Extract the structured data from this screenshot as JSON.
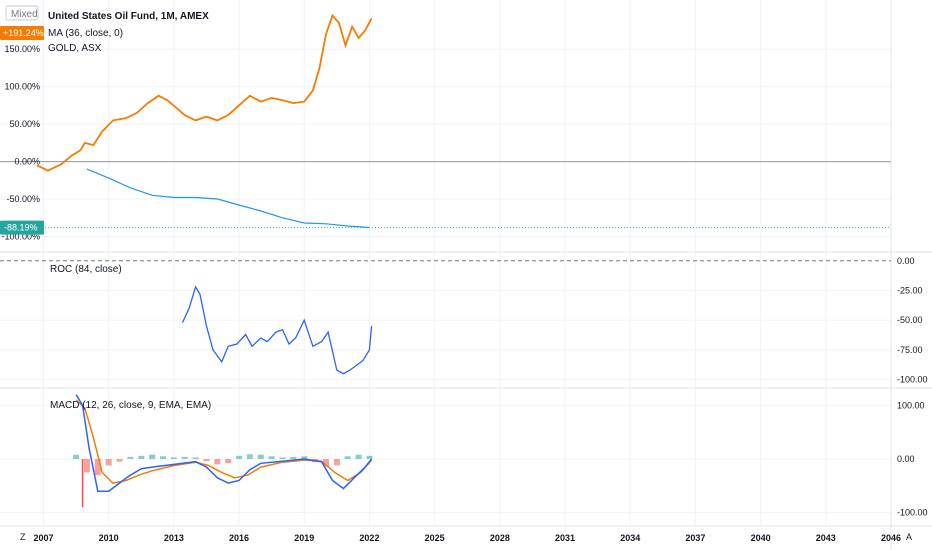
{
  "chart_data": [
    {
      "type": "line",
      "pane": "main",
      "title": "United States Oil Fund, 1M, AMEX",
      "scale_mode": "Mixed",
      "lines": [
        "MA (36, close, 0)",
        "GOLD, ASX"
      ],
      "y_tick_labels": [
        "150.00%",
        "100.00%",
        "50.00%",
        "0.00%",
        "-50.00%",
        "-100.00%"
      ],
      "y_ticks": [
        150,
        100,
        50,
        0,
        -50,
        -100
      ],
      "ylim": [
        -110,
        205
      ],
      "xlim": [
        2005.0,
        2046.0
      ],
      "badges": [
        {
          "text": "+191.24%",
          "value": 191.24,
          "color": "#f57c00"
        },
        {
          "text": "-88.19%",
          "value": -88.19,
          "color": "#26a69a"
        }
      ],
      "gold_line": {
        "color": "#f57c00",
        "x": [
          2006.7,
          2007.2,
          2007.8,
          2008.3,
          2008.7,
          2008.9,
          2009.3,
          2009.7,
          2010.2,
          2010.8,
          2011.3,
          2011.8,
          2012.3,
          2012.7,
          2013.1,
          2013.5,
          2014.0,
          2014.5,
          2015.0,
          2015.5,
          2016.0,
          2016.5,
          2017.0,
          2017.5,
          2018.0,
          2018.5,
          2019.0,
          2019.4,
          2019.7,
          2020.0,
          2020.3,
          2020.6,
          2020.9,
          2021.2,
          2021.5,
          2021.8,
          2022.1
        ],
        "y": [
          -5,
          -12,
          -4,
          8,
          15,
          25,
          22,
          40,
          55,
          58,
          65,
          78,
          88,
          82,
          72,
          62,
          55,
          60,
          55,
          62,
          75,
          88,
          80,
          85,
          82,
          78,
          80,
          95,
          125,
          170,
          195,
          185,
          155,
          180,
          165,
          175,
          191.24
        ]
      },
      "ma_line": {
        "color": "#2196f3",
        "x": [
          2009.0,
          2010.0,
          2011.0,
          2012.0,
          2013.0,
          2014.0,
          2015.0,
          2016.0,
          2017.0,
          2018.0,
          2019.0,
          2020.0,
          2021.0,
          2022.0
        ],
        "y": [
          -10,
          -22,
          -35,
          -45,
          -48,
          -48,
          -50,
          -58,
          -66,
          -75,
          -82,
          -83,
          -86,
          -88
        ]
      },
      "baseline": 0
    },
    {
      "type": "line",
      "pane": "roc",
      "title": "ROC (84, close)",
      "color": "#2962ff",
      "y_tick_labels": [
        "0.00",
        "-25.00",
        "-50.00",
        "-75.00",
        "-100.00"
      ],
      "y_ticks": [
        0,
        -25,
        -50,
        -75,
        -100
      ],
      "ylim": [
        -102,
        4
      ],
      "x": [
        2013.4,
        2013.7,
        2014.0,
        2014.2,
        2014.5,
        2014.8,
        2015.2,
        2015.5,
        2015.9,
        2016.3,
        2016.6,
        2017.0,
        2017.3,
        2017.7,
        2018.0,
        2018.3,
        2018.6,
        2019.0,
        2019.4,
        2019.8,
        2020.1,
        2020.5,
        2020.8,
        2021.1,
        2021.4,
        2021.7,
        2022.0,
        2022.1
      ],
      "y": [
        -52,
        -40,
        -22,
        -28,
        -55,
        -75,
        -85,
        -72,
        -70,
        -62,
        -72,
        -65,
        -68,
        -60,
        -58,
        -70,
        -65,
        -50,
        -72,
        -68,
        -60,
        -92,
        -95,
        -92,
        -88,
        -84,
        -75,
        -55
      ]
    },
    {
      "type": "line",
      "pane": "macd",
      "title": "MACD (12, 26, close, 9, EMA, EMA)",
      "y_tick_labels": [
        "100.00",
        "0.00",
        "-100.00"
      ],
      "y_ticks": [
        100,
        0,
        -100
      ],
      "ylim": [
        -110,
        125
      ],
      "macd": {
        "color": "#2962ff",
        "x": [
          2008.5,
          2008.8,
          2009.1,
          2009.5,
          2010.0,
          2010.5,
          2011.0,
          2011.5,
          2012.0,
          2013.0,
          2014.0,
          2014.5,
          2015.0,
          2015.5,
          2016.0,
          2016.5,
          2017.0,
          2018.0,
          2019.0,
          2019.8,
          2020.3,
          2020.8,
          2021.3,
          2021.8,
          2022.1
        ],
        "y": [
          120,
          100,
          20,
          -60,
          -60,
          -45,
          -30,
          -18,
          -15,
          -10,
          -5,
          -15,
          -35,
          -45,
          -40,
          -20,
          -8,
          -4,
          0,
          -5,
          -40,
          -55,
          -35,
          -15,
          0
        ]
      },
      "signal": {
        "color": "#f57c00",
        "x": [
          2008.5,
          2008.9,
          2009.3,
          2009.7,
          2010.2,
          2010.8,
          2011.4,
          2012.0,
          2013.0,
          2014.0,
          2014.6,
          2015.2,
          2015.8,
          2016.4,
          2017.0,
          2018.0,
          2019.0,
          2019.8,
          2020.4,
          2021.0,
          2021.6,
          2022.1
        ],
        "y": [
          110,
          95,
          40,
          -25,
          -45,
          -40,
          -30,
          -22,
          -12,
          -6,
          -12,
          -25,
          -35,
          -30,
          -15,
          -6,
          -2,
          -4,
          -25,
          -40,
          -25,
          -2
        ]
      },
      "histogram": {
        "x": [
          2008.5,
          2009.0,
          2009.5,
          2010.0,
          2010.5,
          2011.0,
          2011.5,
          2012.0,
          2012.5,
          2013.0,
          2013.5,
          2014.0,
          2014.5,
          2015.0,
          2015.5,
          2016.0,
          2016.5,
          2017.0,
          2017.5,
          2018.0,
          2018.5,
          2019.0,
          2019.5,
          2020.0,
          2020.5,
          2021.0,
          2021.5,
          2022.0
        ],
        "y": [
          8,
          -25,
          -30,
          -12,
          -5,
          4,
          6,
          8,
          5,
          3,
          4,
          3,
          -4,
          -10,
          -8,
          6,
          9,
          8,
          5,
          3,
          4,
          5,
          -6,
          -14,
          -12,
          5,
          8,
          6
        ],
        "positive_color": "#26a69a",
        "negative_color": "#ef5350"
      },
      "impulse": {
        "x": 2008.8,
        "y": -90
      }
    }
  ],
  "x_axis": {
    "tick_labels": [
      "2007",
      "2010",
      "2013",
      "2016",
      "2019",
      "2022",
      "2025",
      "2028",
      "2031",
      "2034",
      "2037",
      "2040",
      "2043",
      "2046"
    ],
    "ticks": [
      2007,
      2010,
      2013,
      2016,
      2019,
      2022,
      2025,
      2028,
      2031,
      2034,
      2037,
      2040,
      2043,
      2046
    ],
    "left_label": "Z",
    "right_label": "A"
  }
}
